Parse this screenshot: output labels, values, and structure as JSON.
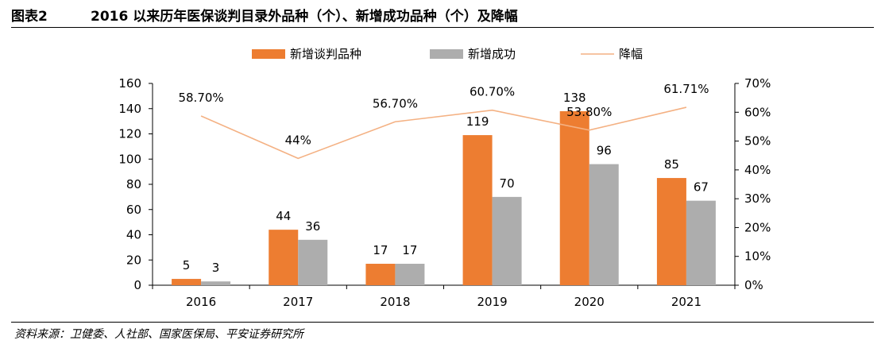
{
  "header": {
    "figure_label": "图表2",
    "title": "2016 以来历年医保谈判目录外品种（个）、新增成功品种（个）及降幅"
  },
  "source": "资料来源：卫健委、人社部、国家医保局、平安证券研究所",
  "colors": {
    "bar_negotiated": "#ED7D31",
    "bar_success": "#ADADAD",
    "line_drop": "#F4B183"
  },
  "chart_data": {
    "type": "bar",
    "categories": [
      "2016",
      "2017",
      "2018",
      "2019",
      "2020",
      "2021"
    ],
    "series": [
      {
        "name": "新增谈判品种",
        "type": "bar",
        "axis": "left",
        "values": [
          5,
          44,
          17,
          119,
          138,
          85
        ],
        "labels": [
          "5",
          "44",
          "17",
          "119",
          "138",
          "85"
        ]
      },
      {
        "name": "新增成功",
        "type": "bar",
        "axis": "left",
        "values": [
          3,
          36,
          17,
          70,
          96,
          67
        ],
        "labels": [
          "3",
          "36",
          "17",
          "70",
          "96",
          "67"
        ]
      },
      {
        "name": "降幅",
        "type": "line",
        "axis": "right",
        "values": [
          58.7,
          44,
          56.7,
          60.7,
          53.8,
          61.71
        ],
        "labels": [
          "58.70%",
          "44%",
          "56.70%",
          "60.70%",
          "53.80%",
          "61.71%"
        ]
      }
    ],
    "y_left": {
      "min": 0,
      "max": 160,
      "ticks": [
        "0",
        "20",
        "40",
        "60",
        "80",
        "100",
        "120",
        "140",
        "160"
      ]
    },
    "y_right": {
      "min": 0,
      "max": 70,
      "ticks": [
        "0%",
        "10%",
        "20%",
        "30%",
        "40%",
        "50%",
        "60%",
        "70%"
      ]
    },
    "grid": false,
    "legend_position": "top"
  }
}
